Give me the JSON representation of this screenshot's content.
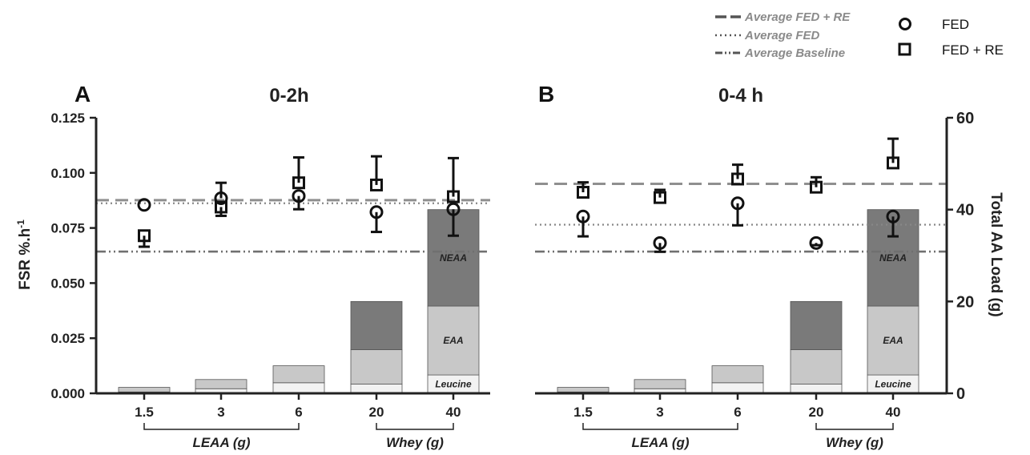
{
  "legend": {
    "lines": [
      {
        "key": "avg_fed_re",
        "label": "Average FED + RE",
        "dash": "16,8",
        "color": "#8a8a8a"
      },
      {
        "key": "avg_fed",
        "label": "Average FED",
        "dash": "2,4",
        "color": "#888888"
      },
      {
        "key": "avg_baseline",
        "label": "Average Baseline",
        "dash": "12,4,2,4,2,4",
        "color": "#707070"
      }
    ],
    "markers": [
      {
        "label": "FED",
        "shape": "circle"
      },
      {
        "label": "FED + RE",
        "shape": "square"
      }
    ]
  },
  "axes": {
    "left_label": "FSR %.h⁻¹",
    "right_label": "Total AA Load (g)",
    "left_ticks": [
      "0.000",
      "0.025",
      "0.050",
      "0.075",
      "0.100",
      "0.125"
    ],
    "right_ticks": [
      "0",
      "20",
      "40",
      "60"
    ]
  },
  "groups": [
    {
      "label": "LEAA (g)",
      "from": 0,
      "to": 2
    },
    {
      "label": "Whey (g)",
      "from": 3,
      "to": 4
    }
  ],
  "colors": {
    "neaa": "#7a7a7a",
    "eaa": "#c8c8c8",
    "leucine": "#f2f2f2",
    "axis": "#222222"
  },
  "chart_data": [
    {
      "type": "bar",
      "panel": "A",
      "title": "0-2h",
      "categories": [
        "1.5",
        "3",
        "6",
        "20",
        "40"
      ],
      "ylim_left": [
        0,
        0.125
      ],
      "ylim_right": [
        0,
        60
      ],
      "bar_segments": [
        {
          "name": "Leucine",
          "axis": "right",
          "values": [
            0.3,
            1.0,
            2.3,
            2.0,
            4.0
          ]
        },
        {
          "name": "EAA",
          "axis": "right",
          "values": [
            1.0,
            2.0,
            3.7,
            7.5,
            15.0
          ]
        },
        {
          "name": "NEAA",
          "axis": "right",
          "values": [
            0,
            0,
            0,
            10.5,
            21.0
          ]
        }
      ],
      "segment_labels": {
        "leucine": "Leucine",
        "eaa": "EAA",
        "neaa": "NEAA"
      },
      "series": [
        {
          "name": "FED",
          "marker": "circle",
          "axis": "left",
          "values": [
            0.0855,
            0.0885,
            0.0895,
            0.0822,
            0.0835
          ],
          "err": [
            0.0,
            0.007,
            0.006,
            0.009,
            0.012
          ]
        },
        {
          "name": "FED + RE",
          "marker": "square",
          "axis": "left",
          "values": [
            0.0715,
            0.0845,
            0.0955,
            0.0945,
            0.0892
          ],
          "err": [
            0.005,
            0.004,
            0.0115,
            0.013,
            0.0175
          ]
        }
      ],
      "reference_lines": {
        "avg_fed_re": 0.0876,
        "avg_fed": 0.0862,
        "avg_baseline": 0.0643
      }
    },
    {
      "type": "bar",
      "panel": "B",
      "title": "0-4 h",
      "categories": [
        "1.5",
        "3",
        "6",
        "20",
        "40"
      ],
      "ylim_left": [
        0,
        0.125
      ],
      "ylim_right": [
        0,
        60
      ],
      "bar_segments": [
        {
          "name": "Leucine",
          "axis": "right",
          "values": [
            0.3,
            1.0,
            2.3,
            2.0,
            4.0
          ]
        },
        {
          "name": "EAA",
          "axis": "right",
          "values": [
            1.0,
            2.0,
            3.7,
            7.5,
            15.0
          ]
        },
        {
          "name": "NEAA",
          "axis": "right",
          "values": [
            0,
            0,
            0,
            10.5,
            21.0
          ]
        }
      ],
      "segment_labels": {
        "leucine": "Leucine",
        "eaa": "EAA",
        "neaa": "NEAA"
      },
      "series": [
        {
          "name": "FED",
          "marker": "circle",
          "axis": "left",
          "values": [
            0.0802,
            0.0682,
            0.0862,
            0.0682,
            0.0802
          ],
          "err": [
            0.009,
            0.004,
            0.01,
            0.001,
            0.009
          ]
        },
        {
          "name": "FED + RE",
          "marker": "square",
          "axis": "left",
          "values": [
            0.0912,
            0.0888,
            0.0972,
            0.0935,
            0.1045
          ],
          "err": [
            0.0045,
            0.0035,
            0.0065,
            0.0045,
            0.011
          ]
        }
      ],
      "reference_lines": {
        "avg_fed_re": 0.095,
        "avg_fed": 0.0765,
        "avg_baseline": 0.0643
      }
    }
  ]
}
